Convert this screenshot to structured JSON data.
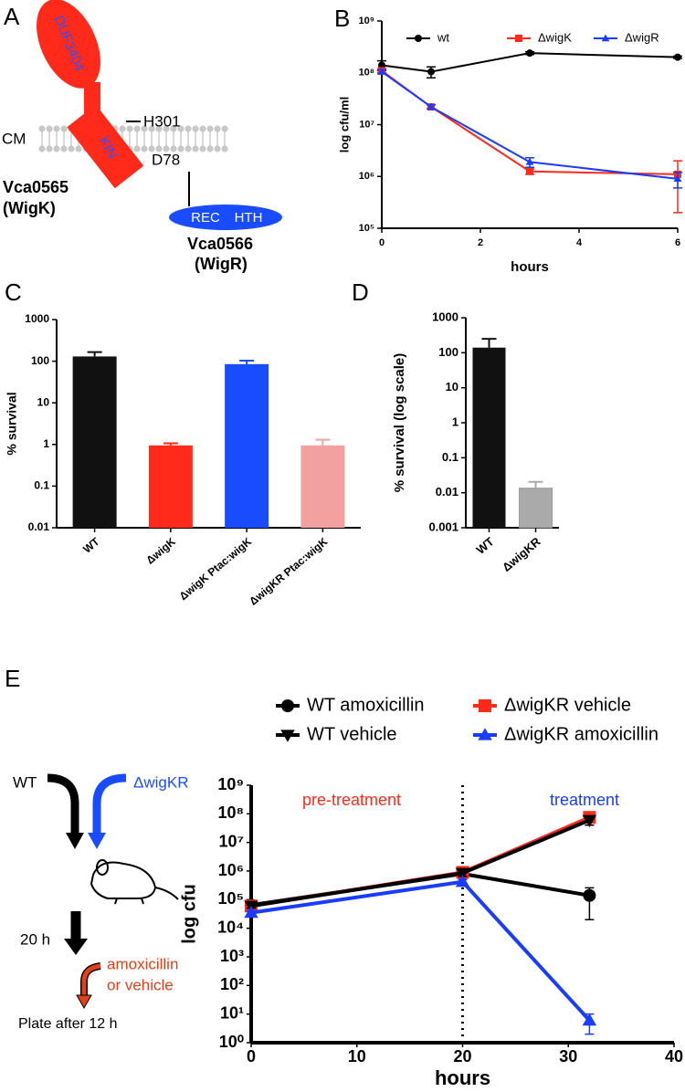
{
  "figure_a": {
    "panel": "A",
    "domain1": "DUF3404",
    "membrane": "CM",
    "kinase": "KIN",
    "residue_h": "H301",
    "protein1": "Vca0565",
    "protein1_alias": "(WigK)",
    "residue_d": "D78",
    "domain_rec": "REC",
    "domain_hth": "HTH",
    "protein2": "Vca0566",
    "protein2_alias": "(WigR)"
  },
  "schematic_e": {
    "strain_wt": "WT",
    "strain_mutant": "ΔwigKR",
    "time": "20 h",
    "treatment_line1": "amoxicillin",
    "treatment_line2": "or vehicle",
    "plating": "Plate after 12 h"
  },
  "chart_data": [
    {
      "panel": "B",
      "type": "line",
      "x": [
        0,
        1,
        3,
        6
      ],
      "xlim": [
        0,
        6
      ],
      "xticks": [
        0,
        2,
        4,
        6
      ],
      "ylim": [
        100000,
        1000000000
      ],
      "log_y": true,
      "yticks": [
        {
          "value": 100000,
          "label": "10⁵"
        },
        {
          "value": 1000000,
          "label": "10⁶"
        },
        {
          "value": 10000000,
          "label": "10⁷"
        },
        {
          "value": 100000000,
          "label": "10⁸"
        },
        {
          "value": 1000000000,
          "label": "10⁹"
        }
      ],
      "xlabel": "hours",
      "ylabel": "log cfu/ml",
      "legend": "top",
      "series": [
        {
          "name": "wt",
          "color": "#000000",
          "marker": "circle",
          "values": [
            140000000,
            105000000,
            240000000,
            200000000
          ],
          "errors": [
            30000000,
            25000000,
            15000000,
            10000000
          ]
        },
        {
          "name": "ΔwigK",
          "color": "#ff2a1a",
          "marker": "square",
          "values": [
            110000000,
            22000000,
            1250000,
            1100000
          ],
          "errors": [
            10000000,
            2000000,
            150000,
            900000
          ]
        },
        {
          "name": "ΔwigR",
          "color": "#1a3cff",
          "marker": "triangle",
          "values": [
            105000000,
            22000000,
            1900000,
            900000
          ],
          "errors": [
            10000000,
            2000000,
            400000,
            300000
          ]
        }
      ]
    },
    {
      "panel": "C",
      "type": "bar",
      "categories": [
        "WT",
        "ΔwigK",
        "ΔwigK Ptac:wigK",
        "ΔwigKR Ptac:wigK"
      ],
      "values": [
        130,
        0.95,
        85,
        0.95
      ],
      "errors": [
        35,
        0.12,
        18,
        0.35
      ],
      "colors": [
        "#111111",
        "#ff2a1a",
        "#1a4cff",
        "#f2a0a0"
      ],
      "ylim": [
        0.01,
        1000
      ],
      "log_y": true,
      "yticks": [
        0.01,
        0.1,
        1,
        10,
        100,
        1000
      ],
      "ylabel": "% survival"
    },
    {
      "panel": "D",
      "type": "bar",
      "categories": [
        "WT",
        "ΔwigKR"
      ],
      "values": [
        140,
        0.0135
      ],
      "errors": [
        110,
        0.007
      ],
      "colors": [
        "#111111",
        "#aaaaaa"
      ],
      "ylim": [
        0.001,
        1000
      ],
      "log_y": true,
      "yticks": [
        0.001,
        0.01,
        0.1,
        1,
        10,
        100,
        1000
      ],
      "ylabel": "% survival (log scale)"
    },
    {
      "panel": "E",
      "type": "line",
      "x": [
        0,
        20,
        32
      ],
      "xlim": [
        0,
        40
      ],
      "xticks": [
        0,
        10,
        20,
        30,
        40
      ],
      "ylim": [
        1,
        1000000000
      ],
      "log_y": true,
      "yticks": [
        {
          "value": 1,
          "label": "10⁰"
        },
        {
          "value": 10,
          "label": "10¹"
        },
        {
          "value": 100,
          "label": "10²"
        },
        {
          "value": 1000,
          "label": "10³"
        },
        {
          "value": 10000,
          "label": "10⁴"
        },
        {
          "value": 100000,
          "label": "10⁵"
        },
        {
          "value": 1000000,
          "label": "10⁶"
        },
        {
          "value": 10000000,
          "label": "10⁷"
        },
        {
          "value": 100000000,
          "label": "10⁸"
        },
        {
          "value": 1000000000,
          "label": "10⁹"
        }
      ],
      "xlabel": "hours",
      "ylabel": "log cfu",
      "legend": "top",
      "divider_x": 20,
      "annotations": [
        {
          "text": "pre-treatment",
          "color": "#ff2a1a"
        },
        {
          "text": "treatment",
          "color": "#1a3cff"
        }
      ],
      "series": [
        {
          "name": "WT amoxicillin",
          "color": "#000000",
          "marker": "circle",
          "values": [
            65000,
            800000,
            140000
          ],
          "errors": [
            10000,
            200000,
            120000
          ]
        },
        {
          "name": "ΔwigKR vehicle",
          "color": "#ff2a1a",
          "marker": "square",
          "values": [
            60000,
            900000,
            75000000
          ],
          "errors": [
            10000,
            200000,
            15000000
          ]
        },
        {
          "name": "WT vehicle",
          "color": "#000000",
          "marker": "triangle-down",
          "values": [
            60000,
            850000,
            60000000
          ],
          "errors": [
            10000,
            200000,
            20000000
          ]
        },
        {
          "name": "ΔwigKR amoxicillin",
          "color": "#1a3cff",
          "marker": "triangle",
          "values": [
            35000,
            420000,
            6
          ],
          "errors": [
            5000,
            80000,
            4
          ]
        }
      ]
    }
  ]
}
